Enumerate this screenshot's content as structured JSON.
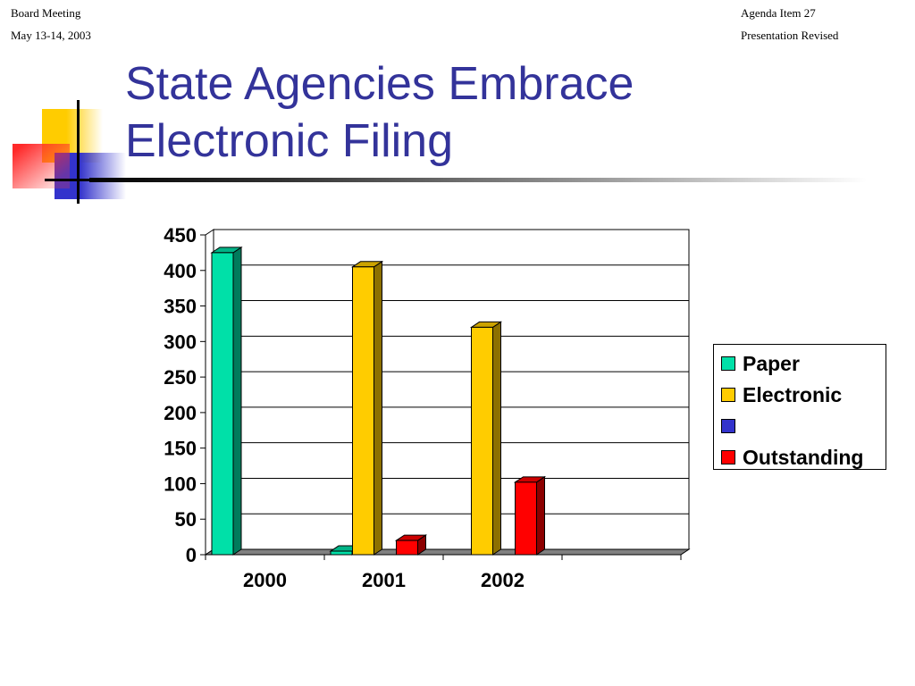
{
  "header": {
    "left_line1": "Board Meeting",
    "left_line2": "May 13-14, 2003",
    "right_line1": "Agenda Item 27",
    "right_line2": "Presentation Revised"
  },
  "slide": {
    "title_line1": "State Agencies Embrace",
    "title_line2": "Electronic Filing"
  },
  "colors": {
    "title": "#33339a",
    "paper": "#00e0a8",
    "electronic": "#ffcc00",
    "blank": "#3333cc",
    "outstanding": "#ff0000"
  },
  "chart_data": {
    "type": "bar",
    "title": "",
    "xlabel": "",
    "ylabel": "",
    "categories": [
      "2000",
      "2001",
      "2002",
      ""
    ],
    "series": [
      {
        "name": "Paper",
        "values": [
          425,
          5,
          0,
          0
        ]
      },
      {
        "name": "Electronic",
        "values": [
          0,
          405,
          320,
          0
        ]
      },
      {
        "name": "",
        "values": [
          0,
          0,
          0,
          0
        ]
      },
      {
        "name": "Outstanding",
        "values": [
          0,
          20,
          102,
          0
        ]
      }
    ],
    "ylim": [
      0,
      450
    ],
    "yticks": [
      "0",
      "50",
      "100",
      "150",
      "200",
      "250",
      "300",
      "350",
      "400",
      "450"
    ],
    "grid": true,
    "legend_position": "right"
  }
}
